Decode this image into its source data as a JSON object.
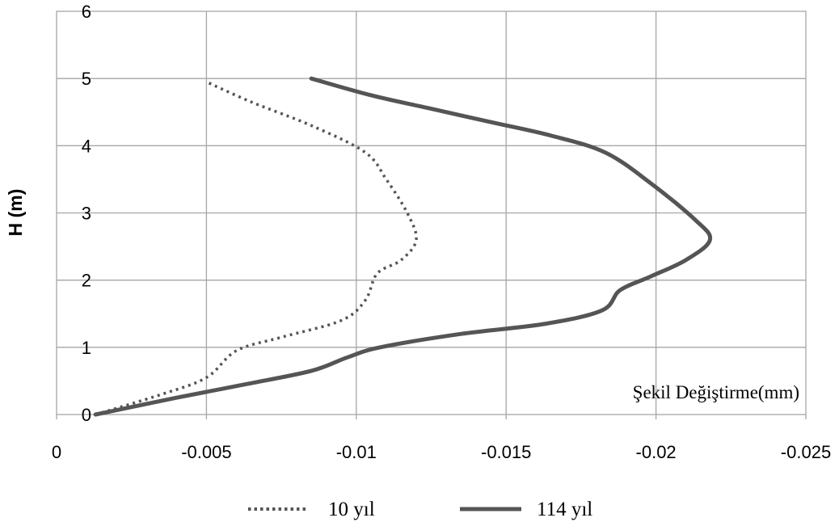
{
  "chart_data": {
    "type": "line",
    "title": "",
    "xlabel": "",
    "ylabel": "H (m)",
    "annotation": "Şekil Değiştirme(mm)",
    "xlim": [
      0,
      -0.025
    ],
    "ylim": [
      0,
      6
    ],
    "x_ticks": [
      0,
      -0.005,
      -0.01,
      -0.015,
      -0.02,
      -0.025
    ],
    "x_tick_labels": [
      "0",
      "-0.005",
      "-0.01",
      "-0.015",
      "-0.02",
      "-0.025"
    ],
    "y_ticks": [
      0,
      1,
      2,
      3,
      4,
      5,
      6
    ],
    "y_tick_labels": [
      "0",
      "1",
      "2",
      "3",
      "4",
      "5",
      "6"
    ],
    "grid": true,
    "legend_position": "bottom",
    "series": [
      {
        "name": "10 yıl",
        "style": "dotted",
        "color": "#555555",
        "points": [
          {
            "x": -0.0013,
            "y": 0.0
          },
          {
            "x": -0.0035,
            "y": 0.3
          },
          {
            "x": -0.005,
            "y": 0.55
          },
          {
            "x": -0.006,
            "y": 0.95
          },
          {
            "x": -0.0075,
            "y": 1.15
          },
          {
            "x": -0.0095,
            "y": 1.4
          },
          {
            "x": -0.0103,
            "y": 1.7
          },
          {
            "x": -0.0107,
            "y": 2.1
          },
          {
            "x": -0.0115,
            "y": 2.3
          },
          {
            "x": -0.012,
            "y": 2.6
          },
          {
            "x": -0.0117,
            "y": 3.0
          },
          {
            "x": -0.011,
            "y": 3.5
          },
          {
            "x": -0.0103,
            "y": 3.9
          },
          {
            "x": -0.0085,
            "y": 4.3
          },
          {
            "x": -0.0065,
            "y": 4.65
          },
          {
            "x": -0.005,
            "y": 4.95
          }
        ]
      },
      {
        "name": "114 yıl",
        "style": "solid",
        "color": "#555555",
        "points": [
          {
            "x": -0.0013,
            "y": 0.0
          },
          {
            "x": -0.004,
            "y": 0.25
          },
          {
            "x": -0.0063,
            "y": 0.45
          },
          {
            "x": -0.0085,
            "y": 0.65
          },
          {
            "x": -0.0097,
            "y": 0.85
          },
          {
            "x": -0.0108,
            "y": 1.0
          },
          {
            "x": -0.0135,
            "y": 1.2
          },
          {
            "x": -0.0163,
            "y": 1.35
          },
          {
            "x": -0.0182,
            "y": 1.55
          },
          {
            "x": -0.0188,
            "y": 1.85
          },
          {
            "x": -0.0198,
            "y": 2.05
          },
          {
            "x": -0.021,
            "y": 2.3
          },
          {
            "x": -0.0218,
            "y": 2.6
          },
          {
            "x": -0.0213,
            "y": 2.9
          },
          {
            "x": -0.0198,
            "y": 3.45
          },
          {
            "x": -0.0183,
            "y": 3.9
          },
          {
            "x": -0.0165,
            "y": 4.15
          },
          {
            "x": -0.0145,
            "y": 4.35
          },
          {
            "x": -0.0125,
            "y": 4.55
          },
          {
            "x": -0.0105,
            "y": 4.75
          },
          {
            "x": -0.0085,
            "y": 5.0
          }
        ]
      }
    ]
  }
}
